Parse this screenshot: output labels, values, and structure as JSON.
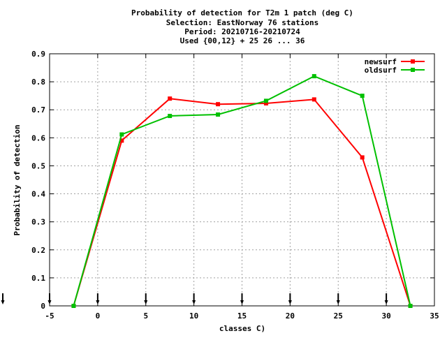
{
  "chart_data": {
    "type": "line",
    "title_lines": [
      "Probability of detection  for T2m 1 patch (deg C)",
      "Selection: EastNorway     76 stations",
      "Period: 20210716-20210724",
      "Used {00,12} + 25 26 ... 36"
    ],
    "xlabel": "classes C)",
    "ylabel": "Probability of detection",
    "xlim": [
      -5,
      35
    ],
    "ylim": [
      0,
      0.9
    ],
    "xticks": [
      -5,
      0,
      5,
      10,
      15,
      20,
      25,
      30,
      35
    ],
    "yticks": [
      0,
      0.1,
      0.2,
      0.3,
      0.4,
      0.5,
      0.6,
      0.7,
      0.8,
      0.9
    ],
    "grid": true,
    "legend_position": "top-right",
    "x": [
      -2.5,
      2.5,
      7.5,
      12.5,
      17.5,
      22.5,
      27.5,
      32.5
    ],
    "series": [
      {
        "name": "newsurf",
        "color": "#ff0000",
        "values": [
          0.0,
          0.59,
          0.74,
          0.72,
          0.723,
          0.737,
          0.53,
          0.0
        ]
      },
      {
        "name": "oldsurf",
        "color": "#00c000",
        "values": [
          0.0,
          0.612,
          0.678,
          0.683,
          0.732,
          0.82,
          0.75,
          0.0
        ]
      }
    ],
    "arrow_markers_x": [
      -5,
      0,
      5,
      10,
      15,
      20,
      25,
      30
    ]
  }
}
